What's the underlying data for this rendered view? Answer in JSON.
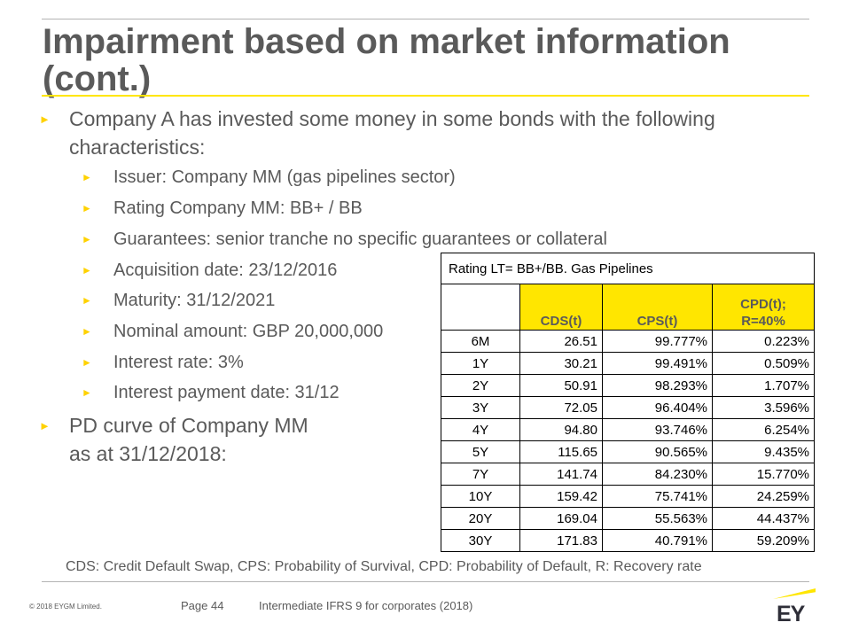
{
  "slide": {
    "title_line1": "Impairment based on market information",
    "title_line2": "(cont.)",
    "bullets": {
      "intro": "Company A has invested some money in some bonds with the following characteristics:",
      "issuer": "Issuer: Company MM  (gas pipelines sector)",
      "rating": "Rating Company MM:  BB+ / BB",
      "guarantees": "Guarantees: senior tranche no specific guarantees or collateral",
      "acquisition": "Acquisition date: 23/12/2016",
      "maturity": "Maturity: 31/12/2021",
      "nominal": "Nominal amount: GBP 20,000,000",
      "interest_rate": "Interest rate: 3%",
      "interest_payment": "Interest payment date: 31/12",
      "pd_curve_line1": "PD curve of Company MM",
      "pd_curve_line2": "as at 31/12/2018:"
    },
    "bullet_glyph": "►"
  },
  "table": {
    "title": "Rating LT= BB+/BB. Gas Pipelines",
    "headers": {
      "cds": "CDS(t)",
      "cps": "CPS(t)",
      "cpd_line1": "CPD(t);",
      "cpd_line2": "R=40%"
    },
    "rows": [
      {
        "tenor": "6M",
        "cds": "26.51",
        "cps": "99.777%",
        "cpd": "0.223%"
      },
      {
        "tenor": "1Y",
        "cds": "30.21",
        "cps": "99.491%",
        "cpd": "0.509%"
      },
      {
        "tenor": "2Y",
        "cds": "50.91",
        "cps": "98.293%",
        "cpd": "1.707%"
      },
      {
        "tenor": "3Y",
        "cds": "72.05",
        "cps": "96.404%",
        "cpd": "3.596%"
      },
      {
        "tenor": "4Y",
        "cds": "94.80",
        "cps": "93.746%",
        "cpd": "6.254%"
      },
      {
        "tenor": "5Y",
        "cds": "115.65",
        "cps": "90.565%",
        "cpd": "9.435%"
      },
      {
        "tenor": "7Y",
        "cds": "141.74",
        "cps": "84.230%",
        "cpd": "15.770%"
      },
      {
        "tenor": "10Y",
        "cds": "159.42",
        "cps": "75.741%",
        "cpd": "24.259%"
      },
      {
        "tenor": "20Y",
        "cds": "169.04",
        "cps": "55.563%",
        "cpd": "44.437%"
      },
      {
        "tenor": "30Y",
        "cds": "171.83",
        "cps": "40.791%",
        "cpd": "59.209%"
      }
    ]
  },
  "footnote": "CDS: Credit Default Swap, CPS: Probability of Survival,  CPD: Probability of Default, R: Recovery rate",
  "footer": {
    "copyright": "© 2018  EYGM Limited.",
    "page": "Page 44",
    "deck_title": "Intermediate IFRS 9 for corporates (2018)",
    "logo_text": "EY"
  },
  "colors": {
    "accent_yellow": "#ffe600",
    "text_gray": "#5a5a5a",
    "logo_dark": "#2e2e38"
  }
}
